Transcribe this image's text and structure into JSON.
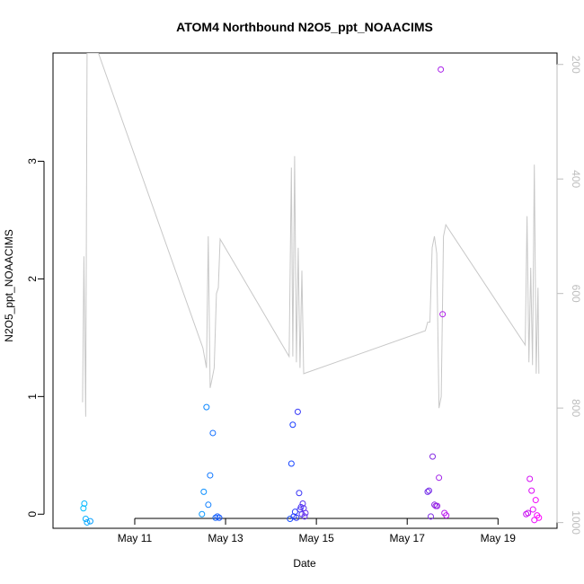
{
  "chart_data": {
    "type": "scatter",
    "title": "ATOM4 Northbound N2O5_ppt_NOAACIMS",
    "xlabel": "Date",
    "ylabel": "N2O5_ppt_NOAACIMS",
    "x_ticks": [
      "May 11",
      "May 13",
      "May 15",
      "May 17",
      "May 19"
    ],
    "x_tick_values": [
      11,
      13,
      15,
      17,
      19
    ],
    "xlim": [
      9.2,
      20.3
    ],
    "y_ticks": [
      "0",
      "1",
      "2",
      "3"
    ],
    "y_tick_values": [
      0,
      1,
      2,
      3
    ],
    "ylim": [
      -0.12,
      3.92
    ],
    "right_axis": {
      "ticks": [
        "200",
        "400",
        "600",
        "800",
        "1000"
      ],
      "tick_values": [
        200,
        400,
        600,
        800,
        1000
      ],
      "lim": [
        180,
        1010
      ],
      "reversed": true,
      "color": "#bdbdbd"
    },
    "right_series": {
      "type": "line",
      "color": "#c8c8c8",
      "x": [
        9.85,
        9.88,
        9.92,
        9.95,
        9.98,
        10.1,
        10.2,
        12.5,
        12.58,
        12.62,
        12.66,
        12.7,
        12.75,
        12.8,
        12.84,
        12.88,
        14.4,
        14.45,
        14.48,
        14.52,
        14.56,
        14.6,
        14.64,
        14.68,
        14.72,
        17.4,
        17.45,
        17.5,
        17.55,
        17.6,
        17.65,
        17.7,
        17.75,
        17.8,
        17.85,
        19.6,
        19.64,
        19.68,
        19.72,
        19.76,
        19.8,
        19.84,
        19.88,
        19.9
      ],
      "y": [
        790,
        535,
        815,
        180,
        180,
        180,
        180,
        695,
        730,
        500,
        765,
        750,
        730,
        600,
        590,
        505,
        710,
        380,
        710,
        360,
        720,
        520,
        730,
        560,
        740,
        665,
        650,
        650,
        520,
        500,
        530,
        800,
        780,
        500,
        480,
        690,
        465,
        720,
        555,
        725,
        375,
        740,
        590,
        740
      ]
    },
    "series": [
      {
        "color_gradient": [
          "#00bfff",
          "#1c3cff",
          "#8a2be2",
          "#ff00ff"
        ],
        "x": [
          9.87,
          9.89,
          9.92,
          9.95,
          10.02,
          12.48,
          12.52,
          12.58,
          12.62,
          12.66,
          12.72,
          12.78,
          12.82,
          12.86,
          14.42,
          14.45,
          14.48,
          14.5,
          14.53,
          14.56,
          14.59,
          14.62,
          14.64,
          14.66,
          14.68,
          14.7,
          14.72,
          14.74,
          14.76,
          17.45,
          17.48,
          17.52,
          17.56,
          17.6,
          17.63,
          17.66,
          17.7,
          17.74,
          17.78,
          17.82,
          17.86,
          19.62,
          19.66,
          19.7,
          19.74,
          19.77,
          19.8,
          19.83,
          19.86,
          19.9
        ],
        "y": [
          0.05,
          0.09,
          -0.04,
          -0.07,
          -0.06,
          0.0,
          0.19,
          0.91,
          0.08,
          0.33,
          0.69,
          -0.03,
          -0.02,
          -0.03,
          -0.04,
          0.43,
          0.76,
          -0.02,
          0.02,
          -0.03,
          0.87,
          0.18,
          0.04,
          0.06,
          0.0,
          0.09,
          0.05,
          -0.02,
          0.01,
          0.19,
          0.2,
          -0.02,
          0.49,
          0.08,
          0.07,
          0.07,
          0.31,
          3.78,
          1.7,
          0.01,
          -0.01,
          0.0,
          0.01,
          0.3,
          0.2,
          0.04,
          -0.05,
          0.12,
          -0.01,
          -0.03
        ]
      }
    ]
  }
}
